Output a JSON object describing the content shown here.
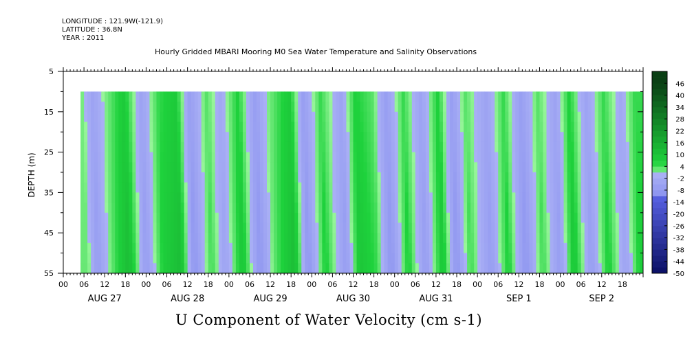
{
  "header": {
    "longitude": "LONGITUDE : 121.9W(-121.9)",
    "latitude": "LATITUDE : 36.8N",
    "year": "YEAR : 2011",
    "title": "Hourly Gridded MBARI Mooring M0 Sea Water Temperature and Salinity Observations"
  },
  "chart_data": {
    "type": "heatmap",
    "title": "Hourly Gridded MBARI Mooring M0 Sea Water Temperature and Salinity Observations",
    "xlabel": "U Component of Water Velocity (cm s-1)",
    "ylabel": "DEPTH (m)",
    "y_ticks": [
      5,
      15,
      25,
      35,
      45,
      55
    ],
    "ylim": [
      5,
      55
    ],
    "y_inverted": true,
    "data_depth_range": [
      10,
      55
    ],
    "x_range_hours": [
      0,
      168
    ],
    "data_start_hour": 5,
    "x_hour_ticks": [
      "00",
      "06",
      "12",
      "18",
      "00",
      "06",
      "12",
      "18",
      "00",
      "06",
      "12",
      "18",
      "00",
      "06",
      "12",
      "18",
      "00",
      "06",
      "12",
      "18",
      "00",
      "06",
      "12",
      "18",
      "00",
      "06",
      "12",
      "18"
    ],
    "day_labels": [
      "AUG 27",
      "AUG 28",
      "AUG 29",
      "AUG 30",
      "AUG 31",
      "SEP  1",
      "SEP  2"
    ],
    "colorbar_levels": [
      46,
      40,
      34,
      28,
      22,
      16,
      10,
      4,
      -2,
      -8,
      -14,
      -20,
      -26,
      -32,
      -38,
      -44,
      -50
    ],
    "colorbar_range": [
      -50,
      52
    ],
    "approx_velocity_profile": [
      {
        "hour": 5,
        "value": 2
      },
      {
        "hour": 8,
        "value": -6
      },
      {
        "hour": 12,
        "value": 2
      },
      {
        "hour": 17,
        "value": 10
      },
      {
        "hour": 22,
        "value": -6
      },
      {
        "hour": 27,
        "value": 6
      },
      {
        "hour": 32,
        "value": 10
      },
      {
        "hour": 36,
        "value": -8
      },
      {
        "hour": 41,
        "value": 4
      },
      {
        "hour": 45,
        "value": -4
      },
      {
        "hour": 50,
        "value": 8
      },
      {
        "hour": 55,
        "value": -8
      },
      {
        "hour": 59,
        "value": 2
      },
      {
        "hour": 65,
        "value": 10
      },
      {
        "hour": 69,
        "value": -8
      },
      {
        "hour": 74,
        "value": 6
      },
      {
        "hour": 80,
        "value": -6
      },
      {
        "hour": 84,
        "value": 8
      },
      {
        "hour": 89,
        "value": 4
      },
      {
        "hour": 93,
        "value": -8
      },
      {
        "hour": 98,
        "value": 6
      },
      {
        "hour": 103,
        "value": -6
      },
      {
        "hour": 108,
        "value": 8
      },
      {
        "hour": 112,
        "value": -8
      },
      {
        "hour": 116,
        "value": 4
      },
      {
        "hour": 122,
        "value": -6
      },
      {
        "hour": 127,
        "value": 6
      },
      {
        "hour": 132,
        "value": -8
      },
      {
        "hour": 137,
        "value": 4
      },
      {
        "hour": 142,
        "value": -6
      },
      {
        "hour": 146,
        "value": 8
      },
      {
        "hour": 151,
        "value": -6
      },
      {
        "hour": 156,
        "value": 6
      },
      {
        "hour": 161,
        "value": -4
      },
      {
        "hour": 165,
        "value": 6
      }
    ],
    "colors": {
      "pos_max": "#0a3f14",
      "pos_mid": "#1ed23c",
      "pos_low": "#98f59a",
      "neg_low": "#aab0f5",
      "neg_mid": "#5a64e6",
      "neg_max": "#0a0f64"
    }
  }
}
